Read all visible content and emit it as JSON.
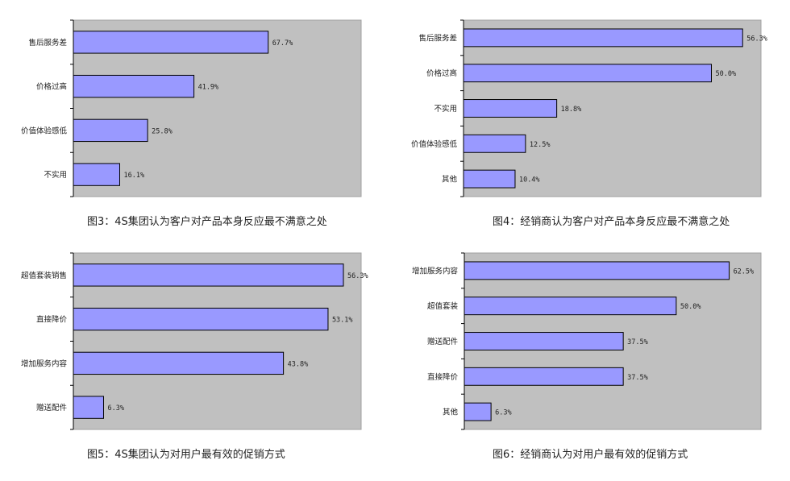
{
  "theme": {
    "plot_bg": "#c0c0c0",
    "bar_fill": "#9999ff",
    "bar_stroke": "#000000",
    "axis_color": "#000000"
  },
  "chart_data": [
    {
      "type": "bar",
      "orientation": "horizontal",
      "caption": "图3：4S集团认为客户对产品本身反应最不满意之处",
      "categories": [
        "售后服务差",
        "价格过高",
        "价值体验感低",
        "不实用"
      ],
      "values": [
        67.7,
        41.9,
        25.8,
        16.1
      ],
      "value_labels": [
        "67.7%",
        "41.9%",
        "25.8%",
        "16.1%"
      ],
      "xlim": [
        0,
        100
      ],
      "grid": false,
      "legend": "none"
    },
    {
      "type": "bar",
      "orientation": "horizontal",
      "caption": "图4：经销商认为客户对产品本身反应最不满意之处",
      "categories": [
        "售后服务差",
        "价格过高",
        "不实用",
        "价值体验感低",
        "其他"
      ],
      "values": [
        56.3,
        50.0,
        18.8,
        12.5,
        10.4
      ],
      "value_labels": [
        "56.3%",
        "50.0%",
        "18.8%",
        "12.5%",
        "10.4%"
      ],
      "xlim": [
        0,
        60
      ],
      "grid": false,
      "legend": "none"
    },
    {
      "type": "bar",
      "orientation": "horizontal",
      "caption": "图5：4S集团认为对用户最有效的促销方式",
      "categories": [
        "超值套装销售",
        "直接降价",
        "增加服务内容",
        "赠送配件"
      ],
      "values": [
        56.3,
        53.1,
        43.8,
        6.3
      ],
      "value_labels": [
        "56.3%",
        "53.1%",
        "43.8%",
        "6.3%"
      ],
      "xlim": [
        0,
        60
      ],
      "grid": false,
      "legend": "none"
    },
    {
      "type": "bar",
      "orientation": "horizontal",
      "caption": "图6：经销商认为对用户最有效的促销方式",
      "categories": [
        "增加服务内容",
        "超值套装",
        "赠送配件",
        "直接降价",
        "其他"
      ],
      "values": [
        62.5,
        50.0,
        37.5,
        37.5,
        6.3
      ],
      "value_labels": [
        "62.5%",
        "50.0%",
        "37.5%",
        "37.5%",
        "6.3%"
      ],
      "xlim": [
        0,
        70
      ],
      "grid": false,
      "legend": "none"
    }
  ]
}
